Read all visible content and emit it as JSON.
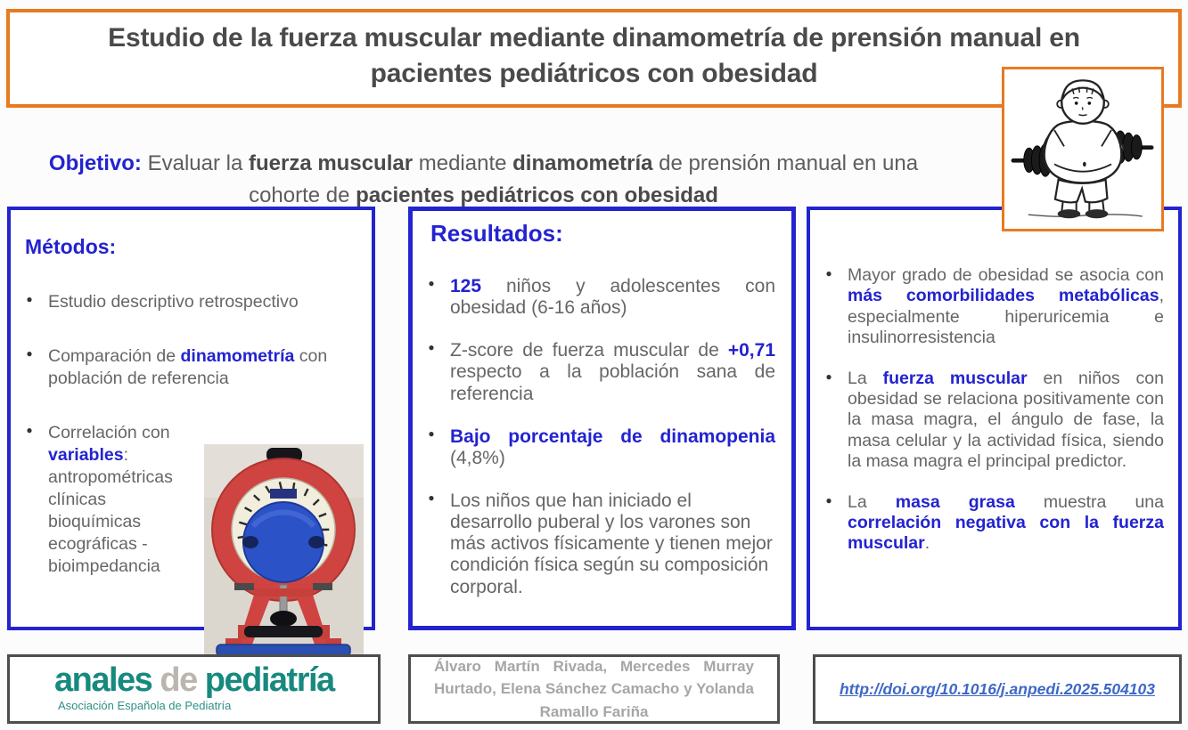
{
  "header": {
    "title": "Estudio de la fuerza muscular mediante dinamometría de prensión manual en pacientes pediátricos con obesidad",
    "illustration": "obese-boy-with-dumbbells"
  },
  "objective": {
    "segments": [
      {
        "t": "Objetivo: ",
        "s": "bb"
      },
      {
        "t": "Evaluar la ",
        "s": "n"
      },
      {
        "t": "fuerza muscular",
        "s": "b"
      },
      {
        "t": " mediante ",
        "s": "n"
      },
      {
        "t": "dinamometría",
        "s": "b"
      },
      {
        "t": " de prensión manual en una cohorte de ",
        "s": "n"
      },
      {
        "t": "pacientes pediátricos con obesidad",
        "s": "b"
      }
    ]
  },
  "columns": {
    "methods": {
      "heading": "Métodos:",
      "bullets": [
        [
          {
            "t": "Estudio descriptivo retrospectivo",
            "s": "n"
          }
        ],
        [
          {
            "t": "Comparación de ",
            "s": "n"
          },
          {
            "t": "dinamometría",
            "s": "bb"
          },
          {
            "t": " con población de referencia",
            "s": "n"
          }
        ],
        [
          {
            "t": "Correlación con ",
            "s": "n"
          },
          {
            "t": "variables",
            "s": "bb"
          },
          {
            "t": ": antropométricas clínicas bioquímicas ecográficas -bioimpedancia",
            "s": "n"
          }
        ]
      ],
      "photo": "hand-grip-dynamometer"
    },
    "results": {
      "heading": "Resultados:",
      "bullets": [
        [
          {
            "t": "125",
            "s": "bb"
          },
          {
            "t": " niños y adolescentes con obesidad (6-16 años)",
            "s": "n"
          }
        ],
        [
          {
            "t": "Z-score de fuerza muscular de ",
            "s": "n"
          },
          {
            "t": "+0,71",
            "s": "bb"
          },
          {
            "t": " respecto a la población sana de referencia",
            "s": "n"
          }
        ],
        [
          {
            "t": "Bajo porcentaje de dinamopenia",
            "s": "bb"
          },
          {
            "t": " (4,8%)",
            "s": "n"
          }
        ],
        [
          {
            "t": "Los niños que han iniciado el desarrollo puberal y los varones son más activos físicamente y tienen mejor condición física según su composición corporal.",
            "s": "n"
          }
        ]
      ]
    },
    "conclusions": {
      "bullets": [
        [
          {
            "t": "Mayor grado de obesidad se asocia con ",
            "s": "n"
          },
          {
            "t": "más comorbilidades metabólicas",
            "s": "bb"
          },
          {
            "t": ", especialmente hiperuricemia e insulinorresistencia",
            "s": "n"
          }
        ],
        [
          {
            "t": "La ",
            "s": "n"
          },
          {
            "t": "fuerza muscular",
            "s": "bb"
          },
          {
            "t": " en niños con obesidad se relaciona positivamente con la masa magra, el ángulo de fase, la masa celular y la actividad física, siendo la masa magra el principal predictor.",
            "s": "n"
          }
        ],
        [
          {
            "t": "La ",
            "s": "n"
          },
          {
            "t": "masa grasa",
            "s": "bb"
          },
          {
            "t": " muestra una ",
            "s": "n"
          },
          {
            "t": "correlación negativa con la fuerza muscular",
            "s": "bb"
          },
          {
            "t": ".",
            "s": "n"
          }
        ]
      ]
    }
  },
  "footer": {
    "journal": {
      "word1": "anales",
      "word2": "de",
      "word3": "pediatría",
      "subtitle": "Asociación Española de Pediatría"
    },
    "authors": "Álvaro Martín Rivada, Mercedes Murray Hurtado, Elena Sánchez Camacho y Yolanda Ramallo Fariña",
    "doi": "http://doi.org/10.1016/j.anpedi.2025.504103"
  },
  "colors": {
    "orange_border": "#E87A22",
    "blue": "#2323D0",
    "title_gray": "#4A4A4A",
    "body_gray": "#666666",
    "authors_gray": "#A6A6A6",
    "teal": "#17897E",
    "link_blue": "#3E68C6"
  }
}
